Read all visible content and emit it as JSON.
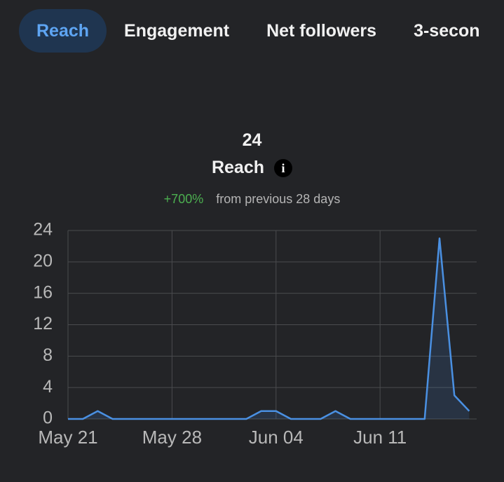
{
  "tabs": [
    "Reach",
    "Engagement",
    "Net followers",
    "3-secon"
  ],
  "summary": {
    "value": 24,
    "metric": "Reach",
    "change": "+700%",
    "comparison": "from previous 28 days"
  },
  "chart_data": {
    "type": "line",
    "categories": [
      "May 21",
      null,
      null,
      null,
      null,
      null,
      null,
      "May 28",
      null,
      null,
      null,
      null,
      null,
      null,
      "Jun 04",
      null,
      null,
      null,
      null,
      null,
      null,
      "Jun 11",
      null,
      null,
      null,
      null,
      null,
      null
    ],
    "values": [
      0,
      0,
      1,
      0,
      0,
      0,
      0,
      0,
      0,
      0,
      0,
      0,
      0,
      1,
      1,
      0,
      0,
      0,
      1,
      0,
      0,
      0,
      0,
      0,
      0,
      23,
      3,
      1
    ],
    "color": "#4a90e2",
    "ylim": [
      0,
      24
    ],
    "yticks": [
      0,
      4,
      8,
      12,
      16,
      20,
      24
    ],
    "grid": true
  }
}
